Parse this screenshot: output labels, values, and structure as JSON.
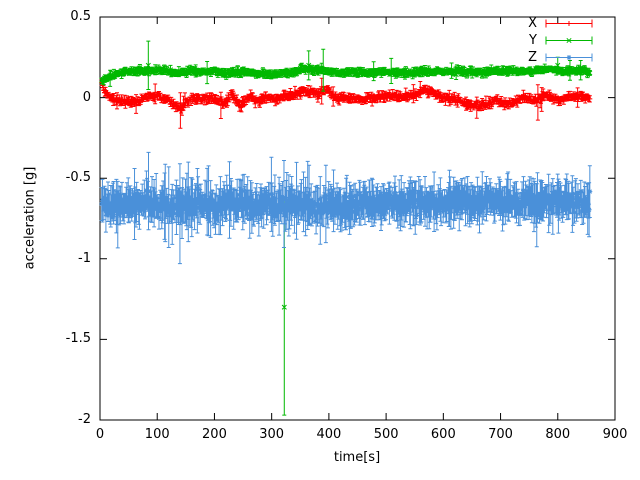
{
  "chart_data": {
    "type": "scatter",
    "subtype": "points-with-error-bars",
    "title": "",
    "xlabel": "time[s]",
    "ylabel": "acceleration [g]",
    "xlim": [
      0,
      900
    ],
    "ylim": [
      -2,
      0.5
    ],
    "background": "#ffffff",
    "axis_color": "#000000",
    "grid": false,
    "legend": {
      "position": "top-right"
    },
    "xticks": [
      {
        "value": 0,
        "label": "0"
      },
      {
        "value": 100,
        "label": "100"
      },
      {
        "value": 200,
        "label": "200"
      },
      {
        "value": 300,
        "label": "300"
      },
      {
        "value": 400,
        "label": "400"
      },
      {
        "value": 500,
        "label": "500"
      },
      {
        "value": 600,
        "label": "600"
      },
      {
        "value": 700,
        "label": "700"
      },
      {
        "value": 800,
        "label": "800"
      },
      {
        "value": 900,
        "label": "900"
      }
    ],
    "yticks": [
      {
        "value": 0.5,
        "label": "0.5"
      },
      {
        "value": 0,
        "label": "0"
      },
      {
        "value": -0.5,
        "label": "-0.5"
      },
      {
        "value": -1,
        "label": "-1"
      },
      {
        "value": -1.5,
        "label": "-1.5"
      },
      {
        "value": -2,
        "label": "-2"
      }
    ],
    "series": [
      {
        "name": "X",
        "color": "#ff0000",
        "marker": "plus",
        "seed": 17,
        "n_points": 640,
        "t_range": [
          3,
          856
        ],
        "noise": 0.009,
        "err_base": 0.012,
        "err_var": 0.01,
        "err_spike_p": 0.01,
        "err_spike_add": 0.04,
        "err_spike_tmax": 900,
        "keyframes": {
          "t": [
            3,
            10,
            25,
            40,
            60,
            80,
            100,
            120,
            140,
            160,
            180,
            200,
            215,
            230,
            245,
            260,
            275,
            290,
            305,
            320,
            340,
            360,
            380,
            395,
            410,
            430,
            455,
            480,
            505,
            530,
            550,
            565,
            580,
            600,
            620,
            640,
            665,
            690,
            715,
            740,
            760,
            780,
            800,
            820,
            840,
            856
          ],
          "y": [
            0.09,
            0.02,
            -0.01,
            -0.02,
            -0.03,
            0.0,
            0.01,
            -0.02,
            -0.07,
            0.0,
            -0.01,
            0.0,
            -0.04,
            0.02,
            -0.05,
            0.01,
            -0.02,
            0.0,
            -0.01,
            0.0,
            0.02,
            0.04,
            0.03,
            0.05,
            0.0,
            0.0,
            -0.01,
            0.0,
            0.01,
            0.0,
            0.02,
            0.05,
            0.03,
            0.0,
            -0.01,
            -0.04,
            -0.05,
            -0.02,
            -0.04,
            0.0,
            -0.02,
            0.01,
            -0.02,
            0.0,
            0.01,
            -0.01
          ]
        },
        "outliers": [
          {
            "t": 140,
            "y": -0.08,
            "e": 0.11
          },
          {
            "t": 765,
            "y": -0.03,
            "e": 0.11
          },
          {
            "t": 30,
            "y": -0.02,
            "e": 0.05
          },
          {
            "t": 388,
            "y": 0.04,
            "e": 0.08
          },
          {
            "t": 560,
            "y": 0.05,
            "e": 0.05
          },
          {
            "t": 835,
            "y": 0.0,
            "e": 0.06
          }
        ]
      },
      {
        "name": "Y",
        "color": "#00b800",
        "marker": "cross",
        "seed": 29,
        "n_points": 640,
        "t_range": [
          3,
          856
        ],
        "noise": 0.008,
        "err_base": 0.01,
        "err_var": 0.008,
        "err_spike_p": 0.012,
        "err_spike_add": 0.05,
        "err_spike_tmax": 900,
        "keyframes": {
          "t": [
            3,
            12,
            25,
            45,
            70,
            90,
            110,
            130,
            150,
            175,
            200,
            225,
            250,
            275,
            300,
            320,
            340,
            355,
            370,
            385,
            400,
            420,
            445,
            470,
            500,
            530,
            560,
            590,
            620,
            650,
            680,
            710,
            740,
            770,
            795,
            815,
            835,
            856
          ],
          "y": [
            0.1,
            0.12,
            0.14,
            0.16,
            0.165,
            0.16,
            0.17,
            0.155,
            0.16,
            0.165,
            0.16,
            0.15,
            0.16,
            0.15,
            0.14,
            0.15,
            0.16,
            0.18,
            0.17,
            0.175,
            0.16,
            0.15,
            0.16,
            0.155,
            0.16,
            0.155,
            0.16,
            0.16,
            0.16,
            0.165,
            0.16,
            0.165,
            0.16,
            0.17,
            0.175,
            0.16,
            0.165,
            0.165
          ]
        },
        "outliers": [
          {
            "t": 85,
            "y": 0.2,
            "e": 0.15
          },
          {
            "t": 322,
            "y": -1.3,
            "e": 0.67
          },
          {
            "t": 390,
            "y": 0.17,
            "e": 0.13
          },
          {
            "t": 365,
            "y": 0.2,
            "e": 0.09
          },
          {
            "t": 18,
            "y": 0.12,
            "e": 0.05
          },
          {
            "t": 800,
            "y": 0.2,
            "e": 0.05
          },
          {
            "t": 840,
            "y": 0.17,
            "e": 0.06
          }
        ]
      },
      {
        "name": "Z",
        "color": "#4a90d9",
        "marker": "star",
        "seed": 43,
        "n_points": 700,
        "t_range": [
          3,
          856
        ],
        "noise": 0.028,
        "err_base": 0.055,
        "err_var": 0.045,
        "err_spike_p": 0.06,
        "err_spike_add": 0.1,
        "err_spike_tmax": 430,
        "keyframes": {
          "t": [
            3,
            30,
            60,
            90,
            120,
            150,
            180,
            210,
            240,
            270,
            300,
            330,
            360,
            390,
            420,
            450,
            480,
            510,
            540,
            570,
            600,
            630,
            660,
            690,
            720,
            750,
            780,
            810,
            840,
            856
          ],
          "y": [
            -0.66,
            -0.67,
            -0.66,
            -0.67,
            -0.68,
            -0.67,
            -0.66,
            -0.67,
            -0.66,
            -0.67,
            -0.66,
            -0.67,
            -0.66,
            -0.68,
            -0.67,
            -0.66,
            -0.66,
            -0.66,
            -0.65,
            -0.66,
            -0.65,
            -0.65,
            -0.65,
            -0.64,
            -0.65,
            -0.64,
            -0.65,
            -0.64,
            -0.65,
            -0.65
          ]
        },
        "outliers": [
          {
            "t": 85,
            "y": -0.58,
            "e": 0.24
          },
          {
            "t": 140,
            "y": -0.72,
            "e": 0.31
          },
          {
            "t": 60,
            "y": -0.66,
            "e": 0.22
          },
          {
            "t": 120,
            "y": -0.68,
            "e": 0.25
          },
          {
            "t": 170,
            "y": -0.64,
            "e": 0.2
          },
          {
            "t": 210,
            "y": -0.67,
            "e": 0.18
          },
          {
            "t": 250,
            "y": -0.65,
            "e": 0.17
          },
          {
            "t": 300,
            "y": -0.6,
            "e": 0.23
          },
          {
            "t": 322,
            "y": -0.66,
            "e": 0.27
          },
          {
            "t": 385,
            "y": -0.7,
            "e": 0.21
          },
          {
            "t": 395,
            "y": -0.66,
            "e": 0.24
          },
          {
            "t": 430,
            "y": -0.66,
            "e": 0.16
          },
          {
            "t": 475,
            "y": -0.65,
            "e": 0.15
          },
          {
            "t": 560,
            "y": -0.65,
            "e": 0.14
          },
          {
            "t": 620,
            "y": -0.64,
            "e": 0.12
          },
          {
            "t": 700,
            "y": -0.64,
            "e": 0.12
          },
          {
            "t": 760,
            "y": -0.65,
            "e": 0.13
          }
        ]
      }
    ]
  }
}
